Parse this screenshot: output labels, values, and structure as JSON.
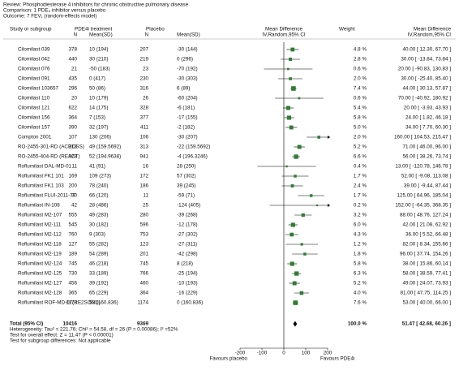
{
  "chart_data": {
    "type": "forest",
    "review": "Review:   Phosphodiesterase 4 inhibitors for chronic obstructive pulmonary disease",
    "comparison": "Comparison:  1 PDE₄ inhibitor versus placebo",
    "outcome": "Outcome:  7 FEV₁ (random-effects model)",
    "headers": {
      "study": "Study or subgroup",
      "treatment": "PDE4i treatment",
      "n1": "N",
      "ms1": "Mean(SD)",
      "placebo": "Placebo",
      "n2": "N",
      "ms2": "Mean(SD)",
      "plot_title": "Mean Difference",
      "plot_method": "IV,Random,95% CI",
      "weight": "Weight",
      "md_title": "Mean Difference",
      "md_method": "IV,Random,95% CI"
    },
    "studies": [
      {
        "name": "Cilomilast 039",
        "n1": 378,
        "ms1": "10 (194)",
        "n2": 207,
        "ms2": "-30 (144)",
        "weight": 4.8,
        "weight_label": "4.8 %",
        "md": 40.0,
        "ci": [
          12.3,
          67.7
        ],
        "md_label": "40.00 [ 12.30, 67.70 ]"
      },
      {
        "name": "Cilomilast 042",
        "n1": 440,
        "ms1": "30 (210)",
        "n2": 219,
        "ms2": "0 (296)",
        "weight": 2.8,
        "weight_label": "2.8 %",
        "md": 30.0,
        "ci": [
          -13.84,
          73.84
        ],
        "md_label": "30.00 [ -13.84, 73.84 ]"
      },
      {
        "name": "Cilomilast 076",
        "n1": 21,
        "ms1": "-50 (183)",
        "n2": 23,
        "ms2": "-70 (192)",
        "weight": 0.6,
        "weight_label": "0.6 %",
        "md": 20.0,
        "ci": [
          -90.83,
          130.83
        ],
        "md_label": "20.00 [ -90.83, 130.83 ]"
      },
      {
        "name": "Cilomilast 091",
        "n1": 435,
        "ms1": "0 (417)",
        "n2": 230,
        "ms2": "-30 (303)",
        "weight": 2.0,
        "weight_label": "2.0 %",
        "md": 30.0,
        "ci": [
          -25.4,
          85.4
        ],
        "md_label": "30.00 [ -25.40, 85.40 ]"
      },
      {
        "name": "Cilomilast 103657",
        "n1": 296,
        "ms1": "50 (86)",
        "n2": 316,
        "ms2": "6 (89)",
        "weight": 7.4,
        "weight_label": "7.4 %",
        "md": 44.0,
        "ci": [
          30.13,
          57.87
        ],
        "md_label": "44.00 [ 30.13, 57.87 ]"
      },
      {
        "name": "Cilomilast 110",
        "n1": 20,
        "ms1": "10 (179)",
        "n2": 26,
        "ms2": "-60 (204)",
        "weight": 0.6,
        "weight_label": "0.6 %",
        "md": 70.0,
        "ci": [
          -40.92,
          180.92
        ],
        "md_label": "70.00 [ -40.92, 180.92 ]"
      },
      {
        "name": "Cilomilast 121",
        "n1": 622,
        "ms1": "14 (175)",
        "n2": 328,
        "ms2": "-6 (181)",
        "weight": 5.4,
        "weight_label": "5.4 %",
        "md": 20.0,
        "ci": [
          -3.93,
          43.93
        ],
        "md_label": "20.00 [ -3.93, 43.93 ]"
      },
      {
        "name": "Cilomilast 156",
        "n1": 364,
        "ms1": "7 (153)",
        "n2": 377,
        "ms2": "-17 (155)",
        "weight": 5.8,
        "weight_label": "5.8 %",
        "md": 24.0,
        "ci": [
          1.82,
          46.18
        ],
        "md_label": "24.00 [ 1.82, 46.18 ]"
      },
      {
        "name": "Cilomilast 157",
        "n1": 390,
        "ms1": "32 (197)",
        "n2": 411,
        "ms2": "-2 (182)",
        "weight": 5.0,
        "weight_label": "5.0 %",
        "md": 34.0,
        "ci": [
          7.7,
          60.3
        ],
        "md_label": "34.00 [ 7.70, 60.30 ]"
      },
      {
        "name": "Compton 2001",
        "n1": 107,
        "ms1": "130 (206)",
        "n2": 106,
        "ms2": "-30 (207)",
        "weight": 2.0,
        "weight_label": "2.0 %",
        "md": 160.0,
        "ci": [
          104.53,
          215.47
        ],
        "md_label": "160.00 [ 104.53, 215.47 ]"
      },
      {
        "name": "RO-2455-301-RD (ACROSS)",
        "n1": 313,
        "ms1": "49 (159.5692)",
        "n2": 313,
        "ms2": "-22 (159.5692)",
        "weight": 5.2,
        "weight_label": "5.2 %",
        "md": 71.0,
        "ci": [
          46.0,
          96.0
        ],
        "md_label": "71.00 [ 46.00, 96.00 ]"
      },
      {
        "name": "RO-2455-404-RD (REACT)",
        "n1": 928,
        "ms1": "52 (194.9638)",
        "n2": 941,
        "ms2": "-4 (196.3246)",
        "weight": 6.6,
        "weight_label": "6.6 %",
        "md": 56.0,
        "ci": [
          38.26,
          73.74
        ],
        "md_label": "56.00 [ 38.26, 73.74 ]"
      },
      {
        "name": "Roflumilast DAL-MD-01",
        "n1": 11,
        "ms1": "41 (91)",
        "n2": 16,
        "ms2": "28 (250)",
        "weight": 0.4,
        "weight_label": "0.4 %",
        "md": 13.0,
        "ci": [
          -120.78,
          146.78
        ],
        "md_label": "13.00 [ -120.78, 146.78 ]"
      },
      {
        "name": "Roflumilast FK1 101",
        "n1": 169,
        "ms1": "109 (273)",
        "n2": 172,
        "ms2": "57 (302)",
        "weight": 1.7,
        "weight_label": "1.7 %",
        "md": 52.0,
        "ci": [
          -9.08,
          113.08
        ],
        "md_label": "52.00 [ -9.08, 113.08 ]"
      },
      {
        "name": "Roflumilast FK1 103",
        "n1": 200,
        "ms1": "78 (240)",
        "n2": 186,
        "ms2": "39 (245)",
        "weight": 2.4,
        "weight_label": "2.4 %",
        "md": 39.0,
        "ci": [
          -9.44,
          87.44
        ],
        "md_label": "39.00 [ -9.44, 87.44 ]"
      },
      {
        "name": "Roflumilast FLUI-2011-77",
        "n1": 30,
        "ms1": "66 (120)",
        "n2": 11,
        "ms2": "-59 (71)",
        "weight": 1.7,
        "weight_label": "1.7 %",
        "md": 125.0,
        "ci": [
          64.96,
          185.04
        ],
        "md_label": "125.00 [ 64.96, 185.04 ]"
      },
      {
        "name": "Roflumilast IN-108",
        "n1": 42,
        "ms1": "28 (486)",
        "n2": 25,
        "ms2": "-124 (405)",
        "weight": 0.2,
        "weight_label": "0.2 %",
        "md": 152.0,
        "ci": [
          -64.35,
          368.35
        ],
        "md_label": "152.00 [ -64.35, 368.35 ]"
      },
      {
        "name": "Roflumilast M2-107",
        "n1": 555,
        "ms1": "49 (283)",
        "n2": 280,
        "ms2": "-39 (268)",
        "weight": 3.2,
        "weight_label": "3.2 %",
        "md": 88.0,
        "ci": [
          48.76,
          127.24
        ],
        "md_label": "88.00 [ 48.76, 127.24 ]"
      },
      {
        "name": "Roflumilast M2-111",
        "n1": 545,
        "ms1": "30 (182)",
        "n2": 596,
        "ms2": "-12 (178)",
        "weight": 6.0,
        "weight_label": "6.0 %",
        "md": 42.0,
        "ci": [
          21.08,
          62.92
        ],
        "md_label": "42.00 [ 21.08, 62.92 ]"
      },
      {
        "name": "Roflumilast M2-112",
        "n1": 760,
        "ms1": "9 (303)",
        "n2": 753,
        "ms2": "-27 (302)",
        "weight": 4.3,
        "weight_label": "4.3 %",
        "md": 36.0,
        "ci": [
          5.52,
          66.48
        ],
        "md_label": "36.00 [ 5.52, 66.48 ]"
      },
      {
        "name": "Roflumilast M2-118",
        "n1": 127,
        "ms1": "55 (282)",
        "n2": 123,
        "ms2": "-27 (311)",
        "weight": 1.2,
        "weight_label": "1.2 %",
        "md": 82.0,
        "ci": [
          8.34,
          155.66
        ],
        "md_label": "82.00 [ 8.34, 155.66 ]"
      },
      {
        "name": "Roflumilast M2-119",
        "n1": 189,
        "ms1": "54 (289)",
        "n2": 201,
        "ms2": "-42 (298)",
        "weight": 1.8,
        "weight_label": "1.8 %",
        "md": 96.0,
        "ci": [
          37.74,
          154.26
        ],
        "md_label": "96.00 [ 37.74, 154.26 ]"
      },
      {
        "name": "Roflumilast M2-124",
        "n1": 745,
        "ms1": "46 (218)",
        "n2": 745,
        "ms2": "8 (218)",
        "weight": 5.8,
        "weight_label": "5.8 %",
        "md": 38.0,
        "ci": [
          15.86,
          60.14
        ],
        "md_label": "38.00 [ 15.86, 60.14 ]"
      },
      {
        "name": "Roflumilast M2-125",
        "n1": 730,
        "ms1": "33 (189)",
        "n2": 766,
        "ms2": "-25 (194)",
        "weight": 6.3,
        "weight_label": "6.3 %",
        "md": 58.0,
        "ci": [
          38.59,
          77.41
        ],
        "md_label": "58.00 [ 38.59, 77.41 ]"
      },
      {
        "name": "Roflumilast M2-127",
        "n1": 456,
        "ms1": "39 (192)",
        "n2": 460,
        "ms2": "-10 (193)",
        "weight": 5.2,
        "weight_label": "5.2 %",
        "md": 49.0,
        "ci": [
          24.07,
          73.93
        ],
        "md_label": "49.00 [ 24.07, 73.93 ]"
      },
      {
        "name": "Roflumilast M2-128",
        "n1": 365,
        "ms1": "65 (229)",
        "n2": 364,
        "ms2": "-16 (229)",
        "weight": 4.0,
        "weight_label": "4.0 %",
        "md": 81.0,
        "ci": [
          47.75,
          114.25
        ],
        "md_label": "81.00 [ 47.75, 114.25 ]"
      },
      {
        "name": "Roflumilast ROF-MD-07(RE2SOND)",
        "n1": 1178,
        "ms1": "53 (160.836)",
        "n2": 1174,
        "ms2": "0 (160.836)",
        "weight": 7.6,
        "weight_label": "7.6 %",
        "md": 53.0,
        "ci": [
          40.0,
          66.0
        ],
        "md_label": "53.00 [ 40.00, 66.00 ]"
      }
    ],
    "total": {
      "name": "Total (95% CI)",
      "n1": 10416,
      "n2": 9369,
      "weight": 100.0,
      "weight_label": "100.0 %",
      "md": 51.47,
      "ci": [
        42.68,
        60.26
      ],
      "md_label": "51.47 [ 42.68, 60.26 ]"
    },
    "heterogeneity": "Heterogeneity: Tau² = 221.76; Chi² = 54.58, df = 26 (P = 0.00086); I² =52%",
    "overall_effect": "Test for overall effect: Z = 11.47 (P < 0.00001)",
    "subgroup_test": "Test for subgroup differences: Not applicable",
    "xlim": [
      -200,
      200
    ],
    "xticks": [
      -200,
      -100,
      0,
      100,
      200
    ],
    "x_label_left": "Favours placebo",
    "x_label_right": "Favours PDE4i",
    "color": "#2e7d32"
  }
}
